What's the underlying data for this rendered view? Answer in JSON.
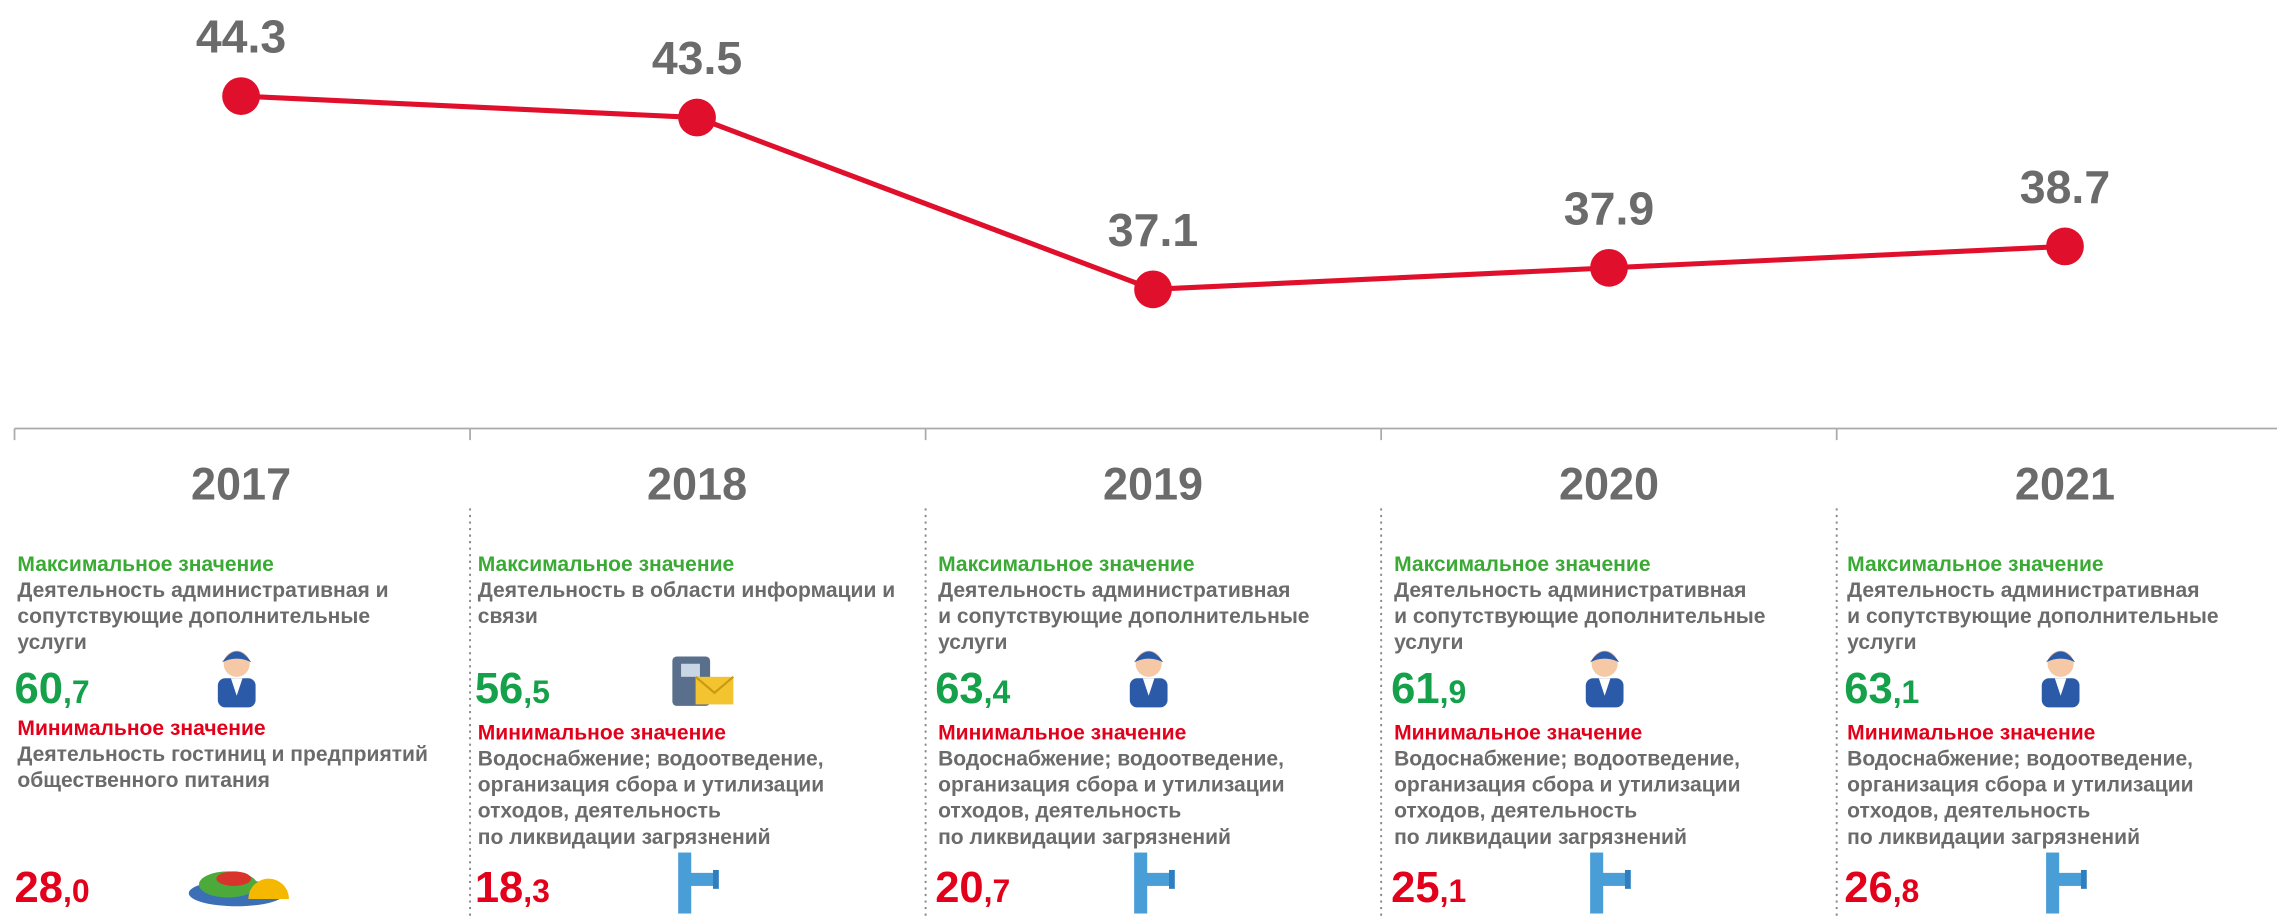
{
  "chart_data": {
    "type": "line",
    "categories": [
      "2017",
      "2018",
      "2019",
      "2020",
      "2021"
    ],
    "series": [
      {
        "color": "#e0102c",
        "values": [
          44.3,
          43.5,
          37.1,
          37.9,
          38.7
        ]
      }
    ],
    "ylim": [
      30,
      48
    ]
  },
  "panels": [
    {
      "max_label": "Максимальное значение",
      "max_desc": [
        "Деятельность административная и",
        "сопутствующие дополнительные",
        "услуги"
      ],
      "max_value": "60,7",
      "min_label": "Минимальное значение",
      "min_desc": [
        "Деятельность гостиниц и предприятий",
        "общественного питания"
      ],
      "min_value": "28,0"
    },
    {
      "max_label": "Максимальное значение",
      "max_desc": [
        "Деятельность в области информации и",
        "связи"
      ],
      "max_value": "56,5",
      "min_label": "Минимальное значение",
      "min_desc": [
        "Водоснабжение; водоотведение,",
        "организация сбора и утилизации",
        "отходов, деятельность",
        "по ликвидации загрязнений"
      ],
      "min_value": "18,3"
    },
    {
      "max_label": "Максимальное значение",
      "max_desc": [
        "Деятельность административная",
        "и сопутствующие дополнительные",
        "услуги"
      ],
      "max_value": "63,4",
      "min_label": "Минимальное значение",
      "min_desc": [
        "Водоснабжение; водоотведение,",
        "организация сбора и утилизации",
        "отходов, деятельность",
        "по ликвидации загрязнений"
      ],
      "min_value": "20,7"
    },
    {
      "max_label": "Максимальное значение",
      "max_desc": [
        "Деятельность административная",
        "и сопутствующие дополнительные",
        "услуги"
      ],
      "max_value": "61,9",
      "min_label": "Минимальное значение",
      "min_desc": [
        "Водоснабжение; водоотведение,",
        "организация сбора и утилизации",
        "отходов, деятельность",
        "по ликвидации загрязнений"
      ],
      "min_value": "25,1"
    },
    {
      "max_label": "Максимальное значение",
      "max_desc": [
        "Деятельность административная",
        "и сопутствующие дополнительные",
        "услуги"
      ],
      "max_value": "63,1",
      "min_label": "Минимальное значение",
      "min_desc": [
        "Водоснабжение; водоотведение,",
        "организация сбора и утилизации",
        "отходов, деятельность",
        "по ликвидации загрязнений"
      ],
      "min_value": "26,8"
    }
  ]
}
